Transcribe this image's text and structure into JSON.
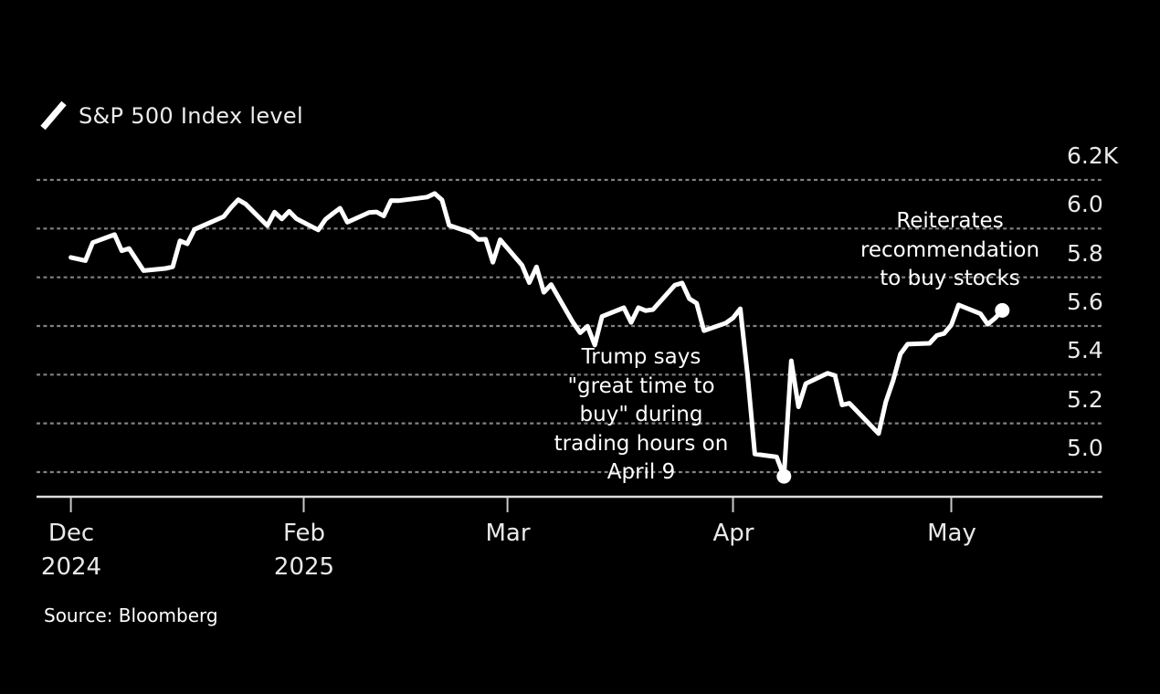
{
  "page": {
    "background": "#000000",
    "source_note": "Source: Bloomberg"
  },
  "legend": {
    "icon": "line-series-slash",
    "label": "S&P 500 Index level",
    "series_color": "#ffffff"
  },
  "chart_data": {
    "type": "line",
    "title": "S&P 500 Index level",
    "xlabel": "",
    "ylabel": "S&P 500 Index level",
    "unit": "index points",
    "grid": "horizontal-dotted",
    "legend_position": "top-left",
    "line_color": "#ffffff",
    "grid_color": "#828282",
    "axis_color": "#dcdcdc",
    "tick_color": "#c8c8c8",
    "label_color": "#e9e9e9",
    "ylim": [
      4780,
      6380
    ],
    "y_ticks": [
      {
        "value": 6200,
        "label": "6.2K"
      },
      {
        "value": 6000,
        "label": "6.0"
      },
      {
        "value": 5800,
        "label": "5.8"
      },
      {
        "value": 5600,
        "label": "5.6"
      },
      {
        "value": 5400,
        "label": "5.4"
      },
      {
        "value": 5200,
        "label": "5.2"
      },
      {
        "value": 5000,
        "label": "5.0"
      }
    ],
    "x_ticks": [
      {
        "date": "2024-12-31",
        "label": "Dec",
        "sublabel": "2024"
      },
      {
        "date": "2025-02-01",
        "label": "Feb",
        "sublabel": "2025"
      },
      {
        "date": "2025-03-01",
        "label": "Mar",
        "sublabel": ""
      },
      {
        "date": "2025-04-01",
        "label": "Apr",
        "sublabel": ""
      },
      {
        "date": "2025-05-01",
        "label": "May",
        "sublabel": ""
      }
    ],
    "series": [
      {
        "name": "S&P 500 Index level",
        "points": [
          [
            "2024-12-31",
            5881.63
          ],
          [
            "2025-01-02",
            5868.55
          ],
          [
            "2025-01-03",
            5942.47
          ],
          [
            "2025-01-06",
            5975.38
          ],
          [
            "2025-01-07",
            5909.03
          ],
          [
            "2025-01-08",
            5918.25
          ],
          [
            "2025-01-10",
            5827.04
          ],
          [
            "2025-01-13",
            5836.22
          ],
          [
            "2025-01-14",
            5842.91
          ],
          [
            "2025-01-15",
            5949.91
          ],
          [
            "2025-01-16",
            5937.34
          ],
          [
            "2025-01-17",
            5996.66
          ],
          [
            "2025-01-21",
            6049.24
          ],
          [
            "2025-01-22",
            6086.37
          ],
          [
            "2025-01-23",
            6118.71
          ],
          [
            "2025-01-24",
            6101.24
          ],
          [
            "2025-01-27",
            6012.28
          ],
          [
            "2025-01-28",
            6067.7
          ],
          [
            "2025-01-29",
            6039.31
          ],
          [
            "2025-01-30",
            6071.17
          ],
          [
            "2025-01-31",
            6040.53
          ],
          [
            "2025-02-03",
            5994.57
          ],
          [
            "2025-02-04",
            6037.88
          ],
          [
            "2025-02-05",
            6061.48
          ],
          [
            "2025-02-06",
            6083.57
          ],
          [
            "2025-02-07",
            6025.99
          ],
          [
            "2025-02-10",
            6066.44
          ],
          [
            "2025-02-11",
            6068.5
          ],
          [
            "2025-02-12",
            6051.97
          ],
          [
            "2025-02-13",
            6115.07
          ],
          [
            "2025-02-14",
            6114.63
          ],
          [
            "2025-02-18",
            6129.58
          ],
          [
            "2025-02-19",
            6144.15
          ],
          [
            "2025-02-20",
            6117.52
          ],
          [
            "2025-02-21",
            6013.13
          ],
          [
            "2025-02-24",
            5983.25
          ],
          [
            "2025-02-25",
            5955.25
          ],
          [
            "2025-02-26",
            5956.06
          ],
          [
            "2025-02-27",
            5861.57
          ],
          [
            "2025-02-28",
            5954.5
          ],
          [
            "2025-03-03",
            5849.72
          ],
          [
            "2025-03-04",
            5778.15
          ],
          [
            "2025-03-05",
            5842.63
          ],
          [
            "2025-03-06",
            5738.52
          ],
          [
            "2025-03-07",
            5770.2
          ],
          [
            "2025-03-10",
            5614.56
          ],
          [
            "2025-03-11",
            5572.07
          ],
          [
            "2025-03-12",
            5599.3
          ],
          [
            "2025-03-13",
            5521.52
          ],
          [
            "2025-03-14",
            5638.94
          ],
          [
            "2025-03-17",
            5675.12
          ],
          [
            "2025-03-18",
            5614.66
          ],
          [
            "2025-03-19",
            5675.29
          ],
          [
            "2025-03-20",
            5662.89
          ],
          [
            "2025-03-21",
            5667.56
          ],
          [
            "2025-03-24",
            5767.57
          ],
          [
            "2025-03-25",
            5776.65
          ],
          [
            "2025-03-26",
            5712.2
          ],
          [
            "2025-03-27",
            5693.31
          ],
          [
            "2025-03-28",
            5580.94
          ],
          [
            "2025-03-31",
            5611.85
          ],
          [
            "2025-04-01",
            5633.07
          ],
          [
            "2025-04-02",
            5670.97
          ],
          [
            "2025-04-03",
            5396.52
          ],
          [
            "2025-04-04",
            5074.08
          ],
          [
            "2025-04-07",
            5062.25
          ],
          [
            "2025-04-08",
            4982.77
          ],
          [
            "2025-04-09",
            5456.9
          ],
          [
            "2025-04-10",
            5268.05
          ],
          [
            "2025-04-11",
            5363.36
          ],
          [
            "2025-04-14",
            5405.97
          ],
          [
            "2025-04-15",
            5396.63
          ],
          [
            "2025-04-16",
            5275.7
          ],
          [
            "2025-04-17",
            5282.7
          ],
          [
            "2025-04-21",
            5158.2
          ],
          [
            "2025-04-22",
            5287.76
          ],
          [
            "2025-04-23",
            5375.86
          ],
          [
            "2025-04-24",
            5484.77
          ],
          [
            "2025-04-25",
            5525.21
          ],
          [
            "2025-04-28",
            5528.75
          ],
          [
            "2025-04-29",
            5560.83
          ],
          [
            "2025-04-30",
            5569.06
          ],
          [
            "2025-05-01",
            5604.14
          ],
          [
            "2025-05-02",
            5686.67
          ],
          [
            "2025-05-05",
            5650.38
          ],
          [
            "2025-05-06",
            5606.91
          ],
          [
            "2025-05-07",
            5631.28
          ],
          [
            "2025-05-08",
            5663.94
          ]
        ]
      }
    ],
    "markers": [
      {
        "date": "2025-04-08",
        "value": 4982.77,
        "meaning": "low marked by Trump 'great time to buy' note"
      },
      {
        "date": "2025-05-08",
        "value": 5663.94,
        "meaning": "latest value marked by reiterated buy recommendation note"
      }
    ],
    "annotations": [
      {
        "id": "trump-april9-note",
        "text": "Trump says\n\"great time to\nbuy\" during\ntrading hours on\nApril 9"
      },
      {
        "id": "reiterates-note",
        "text": "Reiterates\nrecommendation\nto buy stocks"
      }
    ]
  }
}
